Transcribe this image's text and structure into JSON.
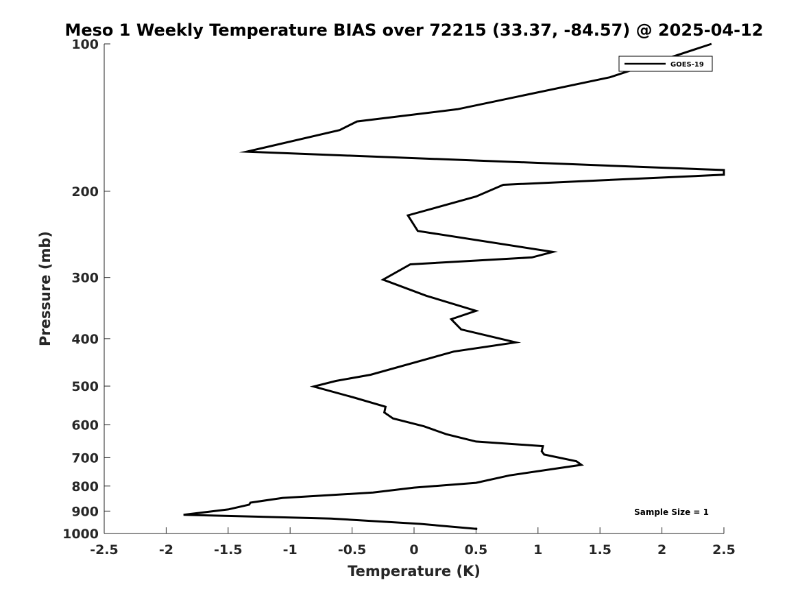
{
  "chart_data": {
    "type": "line",
    "title": "Meso 1 Weekly Temperature BIAS over 72215 (33.37, -84.57) @ 2025-04-12",
    "xlabel": "Temperature (K)",
    "ylabel": "Pressure (mb)",
    "xlim": [
      -2.5,
      2.5
    ],
    "ylim": [
      1000,
      100
    ],
    "y_scale": "log",
    "y_reversed": true,
    "x_ticks": [
      "-2.5",
      "-2",
      "-1.5",
      "-1",
      "-0.5",
      "0",
      "0.5",
      "1",
      "1.5",
      "2",
      "2.5"
    ],
    "x_tick_values": [
      -2.5,
      -2,
      -1.5,
      -1,
      -0.5,
      0,
      0.5,
      1,
      1.5,
      2,
      2.5
    ],
    "y_ticks": [
      "100",
      "200",
      "300",
      "400",
      "500",
      "600",
      "700",
      "800",
      "900",
      "1000"
    ],
    "y_tick_values": [
      100,
      200,
      300,
      400,
      500,
      600,
      700,
      800,
      900,
      1000
    ],
    "legend_position": "top-right",
    "grid": false,
    "series": [
      {
        "name": "GOES-19",
        "color": "#000000",
        "points": [
          [
            2.4,
            100
          ],
          [
            1.58,
            117
          ],
          [
            0.35,
            136
          ],
          [
            -0.46,
            144
          ],
          [
            -0.6,
            150
          ],
          [
            -1.35,
            166
          ],
          [
            2.5,
            181
          ],
          [
            2.5,
            185
          ],
          [
            0.72,
            194
          ],
          [
            0.5,
            205
          ],
          [
            -0.05,
            224
          ],
          [
            0.03,
            241
          ],
          [
            1.12,
            266
          ],
          [
            0.95,
            273
          ],
          [
            -0.03,
            282
          ],
          [
            -0.25,
            303
          ],
          [
            0.1,
            327
          ],
          [
            0.5,
            351
          ],
          [
            0.3,
            365
          ],
          [
            0.38,
            383
          ],
          [
            0.82,
            407
          ],
          [
            0.32,
            425
          ],
          [
            -0.35,
            474
          ],
          [
            -0.63,
            488
          ],
          [
            -0.81,
            501
          ],
          [
            -0.48,
            528
          ],
          [
            -0.23,
            551
          ],
          [
            -0.24,
            566
          ],
          [
            -0.17,
            582
          ],
          [
            0.08,
            604
          ],
          [
            0.26,
            627
          ],
          [
            0.5,
            649
          ],
          [
            1.04,
            663
          ],
          [
            1.03,
            679
          ],
          [
            1.05,
            690
          ],
          [
            1.31,
            712
          ],
          [
            1.35,
            724
          ],
          [
            0.77,
            761
          ],
          [
            0.5,
            788
          ],
          [
            0.0,
            806
          ],
          [
            -0.33,
            825
          ],
          [
            -1.06,
            846
          ],
          [
            -1.32,
            865
          ],
          [
            -1.33,
            873
          ],
          [
            -1.5,
            893
          ],
          [
            -1.86,
            916
          ],
          [
            -0.67,
            932
          ],
          [
            0.05,
            956
          ],
          [
            0.51,
            979
          ]
        ]
      }
    ],
    "annotations": [
      {
        "text": "Sample Size = 1",
        "position": "bottom-right"
      }
    ]
  }
}
